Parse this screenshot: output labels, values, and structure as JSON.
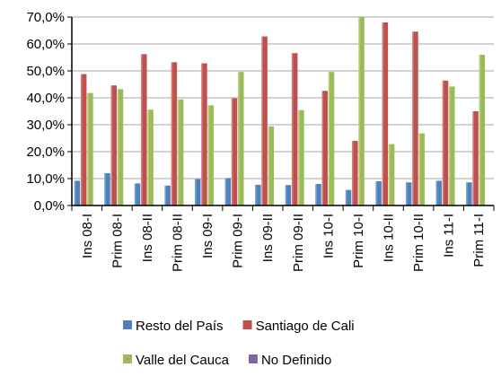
{
  "chart_data": {
    "type": "bar",
    "title": "",
    "xlabel": "",
    "ylabel": "",
    "ylim": [
      0,
      70
    ],
    "yticks": [
      "0,0%",
      "10,0%",
      "20,0%",
      "30,0%",
      "40,0%",
      "50,0%",
      "60,0%",
      "70,0%"
    ],
    "categories": [
      "Ins 08-I",
      "Prim 08-I",
      "Ins 08-II",
      "Prim 08-II",
      "Ins 09-I",
      "Prim 09-I",
      "Ins 09-II",
      "Prim 09-II",
      "Ins 10-I",
      "Prim 10-I",
      "Ins 10-II",
      "Prim 10-II",
      "Ins 11-I",
      "Prim 11-I"
    ],
    "series": [
      {
        "name": "Resto del País",
        "color": "#4F81BD",
        "values": [
          9.2,
          12.0,
          8.2,
          7.4,
          9.8,
          10.2,
          7.7,
          7.6,
          8.0,
          5.8,
          9.0,
          8.6,
          9.2,
          8.6
        ]
      },
      {
        "name": "Santiago de Cali",
        "color": "#C0504D",
        "values": [
          48.8,
          44.6,
          56.2,
          53.2,
          52.8,
          39.8,
          62.8,
          56.6,
          42.6,
          24.0,
          68.0,
          64.6,
          46.4,
          35.0
        ]
      },
      {
        "name": "Valle del Cauca",
        "color": "#9BBB59",
        "values": [
          41.8,
          43.2,
          35.6,
          39.4,
          37.2,
          49.6,
          29.4,
          35.4,
          49.6,
          70.0,
          22.8,
          26.8,
          44.2,
          56.0
        ]
      },
      {
        "name": "No Definido",
        "color": "#8064A2",
        "values": [
          0,
          0,
          0,
          0,
          0,
          0,
          0,
          0,
          0,
          0,
          0,
          0,
          0,
          0
        ]
      }
    ],
    "grid": true,
    "legend_position": "bottom"
  }
}
